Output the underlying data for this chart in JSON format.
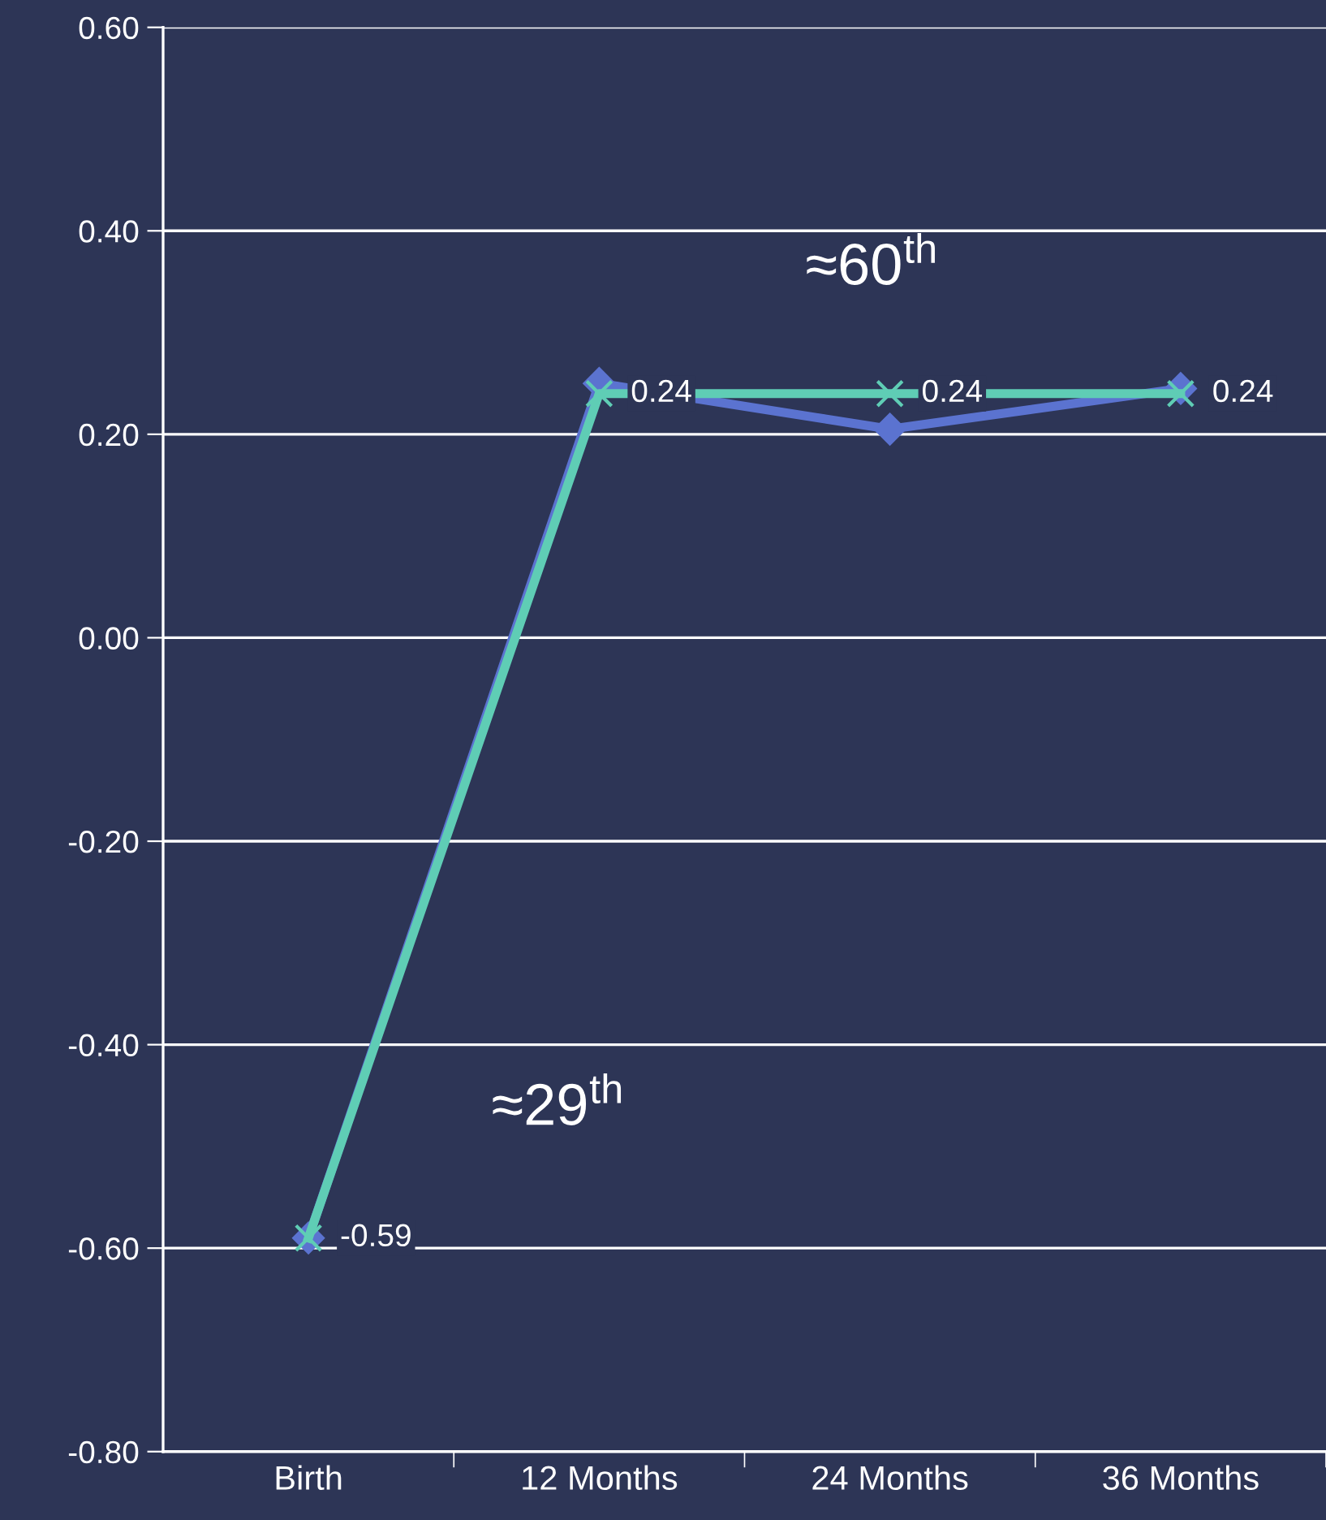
{
  "chart_data": {
    "type": "line",
    "categories": [
      "Birth",
      "12 Months",
      "24 Months",
      "36 Months"
    ],
    "series": [
      {
        "color": "#5b73d0",
        "marker": "diamond",
        "values": [
          -0.59,
          0.25,
          0.205,
          0.245
        ]
      },
      {
        "color": "#5fcdb5",
        "marker": "cross",
        "values": [
          -0.59,
          0.24,
          0.24,
          0.24
        ],
        "value_labels": [
          "-0.59",
          "0.24",
          "0.24",
          "0.24"
        ]
      }
    ],
    "ylim": [
      -0.8,
      0.6
    ],
    "yticks": [
      {
        "value": -0.8,
        "label": "-0.80"
      },
      {
        "value": -0.6,
        "label": "-0.60"
      },
      {
        "value": -0.4,
        "label": "-0.40"
      },
      {
        "value": -0.2,
        "label": "-0.20"
      },
      {
        "value": 0,
        "label": "0.00"
      },
      {
        "value": 0.2,
        "label": "0.20"
      },
      {
        "value": 0.4,
        "label": "0.40"
      },
      {
        "value": 0.6,
        "label": "0.60"
      }
    ],
    "grid": "y",
    "legend": false,
    "line_style": "solid",
    "annotations": [
      "≈60$^{th}$",
      "≈29$^{th}$"
    ]
  }
}
